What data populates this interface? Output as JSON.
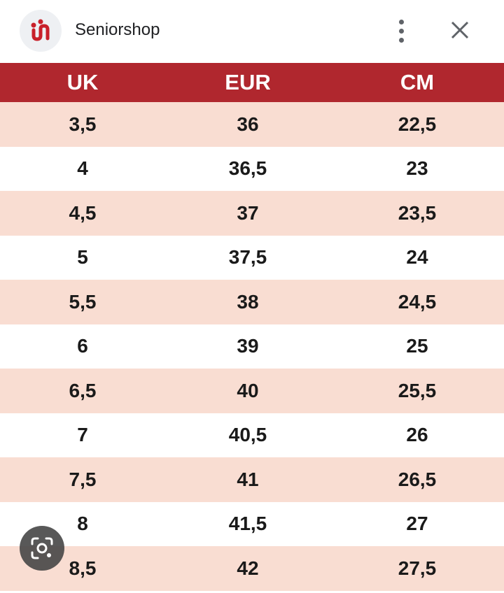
{
  "header": {
    "site_name": "Seniorshop",
    "logo_icon": "seniorshop-logo-icon",
    "menu_icon": "more-vert-icon",
    "close_icon": "close-icon"
  },
  "table": {
    "headers": [
      "UK",
      "EUR",
      "CM"
    ],
    "rows": [
      [
        "3,5",
        "36",
        "22,5"
      ],
      [
        "4",
        "36,5",
        "23"
      ],
      [
        "4,5",
        "37",
        "23,5"
      ],
      [
        "5",
        "37,5",
        "24"
      ],
      [
        "5,5",
        "38",
        "24,5"
      ],
      [
        "6",
        "39",
        "25"
      ],
      [
        "6,5",
        "40",
        "25,5"
      ],
      [
        "7",
        "40,5",
        "26"
      ],
      [
        "7,5",
        "41",
        "26,5"
      ],
      [
        "8",
        "41,5",
        "27"
      ],
      [
        "8,5",
        "42",
        "27,5"
      ]
    ]
  },
  "lens": {
    "icon": "lens-search-icon"
  },
  "colors": {
    "header_bg": "#b0272e",
    "shade_row": "#f9ddd2",
    "brand_red": "#c8202a"
  }
}
